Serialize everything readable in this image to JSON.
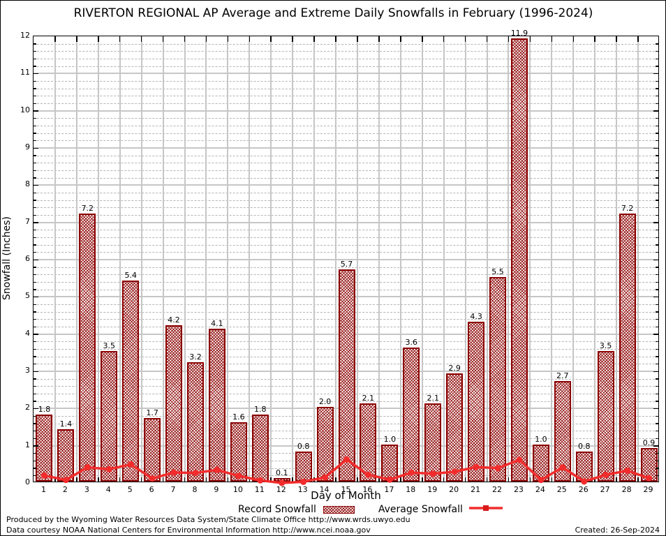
{
  "chart_data": {
    "type": "bar",
    "title": "RIVERTON REGIONAL AP Average and Extreme Daily Snowfalls in February (1996-2024)",
    "xlabel": "Day of Month",
    "ylabel": "Snowfall (Inches)",
    "ylim": [
      0,
      12
    ],
    "y_major_step": 1,
    "y_minor_step": 0.2,
    "grid": true,
    "legend_position": "bottom-center",
    "bar_value_labels": true,
    "categories": [
      1,
      2,
      3,
      4,
      5,
      6,
      7,
      8,
      9,
      10,
      11,
      12,
      13,
      14,
      15,
      16,
      17,
      18,
      19,
      20,
      21,
      22,
      23,
      24,
      25,
      26,
      27,
      28,
      29
    ],
    "series": [
      {
        "name": "Record Snowfall",
        "type": "bar",
        "color": "#8b0000",
        "pattern": "crosshatch",
        "values": [
          1.8,
          1.4,
          7.2,
          3.5,
          5.4,
          1.7,
          4.2,
          3.2,
          4.1,
          1.6,
          1.8,
          0.1,
          0.8,
          2.0,
          5.7,
          2.1,
          1.0,
          3.6,
          2.1,
          2.9,
          4.3,
          5.5,
          11.9,
          1.0,
          2.7,
          0.8,
          3.5,
          7.2,
          0.9
        ]
      },
      {
        "name": "Average Snowfall",
        "type": "line",
        "color": "#f22c2c",
        "marker": "circle",
        "values": [
          0.2,
          0.08,
          0.42,
          0.37,
          0.5,
          0.12,
          0.28,
          0.27,
          0.35,
          0.19,
          0.07,
          0.0,
          0.03,
          0.15,
          0.63,
          0.22,
          0.09,
          0.28,
          0.25,
          0.3,
          0.43,
          0.4,
          0.62,
          0.08,
          0.42,
          0.04,
          0.22,
          0.33,
          0.13
        ]
      }
    ]
  },
  "legend": {
    "record_label": "Record Snowfall",
    "average_label": "Average Snowfall"
  },
  "footer": {
    "line1": "Produced by the Wyoming Water Resources Data System/State Climate Office http://www.wrds.uwyo.edu",
    "line2": "Data courtesy NOAA National Centers for Environmental Information http://www.ncei.noaa.gov",
    "created": "Created: 26-Sep-2024"
  },
  "colors": {
    "bar_border": "#8b0000",
    "line": "#f22c2c",
    "grid_major": "#c6c6c6",
    "grid_minor": "#b4b4b4",
    "axis": "#000000",
    "background": "#ffffff"
  }
}
